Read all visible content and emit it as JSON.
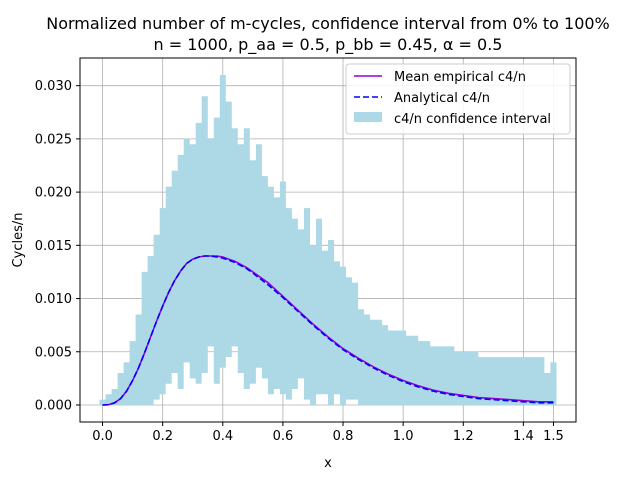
{
  "chart_data": {
    "type": "line",
    "title": "Normalized number of m-cycles, confidence interval from 0% to 100%",
    "subtitle": "n = 1000, p_aa = 0.5, p_bb = 0.45, α = 0.5",
    "xlabel": "x",
    "ylabel": "Cycles/n",
    "xlim": [
      -0.075,
      1.575
    ],
    "ylim": [
      -0.0016,
      0.0326
    ],
    "x_ticks": [
      0.0,
      0.2,
      0.4,
      0.6,
      0.8,
      1.0,
      1.2,
      1.4,
      1.5
    ],
    "x_tick_labels": [
      "0.0",
      "0.2",
      "0.4",
      "0.6",
      "0.8",
      "1.0",
      "1.2",
      "1.4",
      "1.5"
    ],
    "y_ticks": [
      0.0,
      0.005,
      0.01,
      0.015,
      0.02,
      0.025,
      0.03
    ],
    "y_tick_labels": [
      "0.000",
      "0.005",
      "0.010",
      "0.015",
      "0.020",
      "0.025",
      "0.030"
    ],
    "grid": true,
    "legend_position": "top-right",
    "colors": {
      "empirical": "#9400d3",
      "analytical": "#0000ff",
      "band": "#add8e6",
      "grid": "#b0b0b0"
    },
    "series": [
      {
        "name": "Mean empirical c4/n",
        "style": "solid",
        "x": [
          0.0,
          0.02,
          0.04,
          0.06,
          0.08,
          0.1,
          0.12,
          0.14,
          0.16,
          0.18,
          0.2,
          0.22,
          0.24,
          0.26,
          0.28,
          0.3,
          0.32,
          0.34,
          0.36,
          0.38,
          0.4,
          0.42,
          0.44,
          0.46,
          0.48,
          0.5,
          0.55,
          0.6,
          0.65,
          0.7,
          0.75,
          0.8,
          0.85,
          0.9,
          0.95,
          1.0,
          1.05,
          1.1,
          1.15,
          1.2,
          1.25,
          1.3,
          1.35,
          1.4,
          1.45,
          1.5
        ],
        "y": [
          0.0,
          3e-05,
          0.0002,
          0.0006,
          0.0013,
          0.0023,
          0.0035,
          0.0049,
          0.0064,
          0.0079,
          0.0093,
          0.0106,
          0.0117,
          0.0126,
          0.0133,
          0.0137,
          0.0139,
          0.014,
          0.014,
          0.014,
          0.0139,
          0.0137,
          0.0135,
          0.0132,
          0.0129,
          0.0125,
          0.0115,
          0.0102,
          0.0089,
          0.0076,
          0.0064,
          0.0053,
          0.0044,
          0.0036,
          0.0029,
          0.0023,
          0.0018,
          0.0014,
          0.0011,
          0.0009,
          0.0007,
          0.0006,
          0.0005,
          0.0004,
          0.0003,
          0.0003
        ]
      },
      {
        "name": "Analytical c4/n",
        "style": "dashed",
        "x": [
          0.0,
          0.02,
          0.04,
          0.06,
          0.08,
          0.1,
          0.12,
          0.14,
          0.16,
          0.18,
          0.2,
          0.22,
          0.24,
          0.26,
          0.28,
          0.3,
          0.32,
          0.34,
          0.36,
          0.38,
          0.4,
          0.42,
          0.44,
          0.46,
          0.48,
          0.5,
          0.55,
          0.6,
          0.65,
          0.7,
          0.75,
          0.8,
          0.85,
          0.9,
          0.95,
          1.0,
          1.05,
          1.1,
          1.15,
          1.2,
          1.25,
          1.3,
          1.35,
          1.4,
          1.45,
          1.5
        ],
        "y": [
          0.0,
          3e-05,
          0.0002,
          0.0006,
          0.0013,
          0.0023,
          0.0035,
          0.0049,
          0.0064,
          0.0079,
          0.0093,
          0.0106,
          0.0117,
          0.0126,
          0.0133,
          0.0137,
          0.0139,
          0.014,
          0.014,
          0.0139,
          0.0138,
          0.0136,
          0.0134,
          0.0131,
          0.0128,
          0.0124,
          0.0113,
          0.0101,
          0.0088,
          0.0075,
          0.0063,
          0.0052,
          0.0043,
          0.0035,
          0.0028,
          0.0022,
          0.0017,
          0.0013,
          0.001,
          0.0008,
          0.0006,
          0.0005,
          0.0004,
          0.0003,
          0.0002,
          0.0002
        ]
      }
    ],
    "band": {
      "name": "c4/n confidence interval",
      "x": [
        0.0,
        0.02,
        0.04,
        0.06,
        0.08,
        0.1,
        0.12,
        0.14,
        0.16,
        0.18,
        0.2,
        0.22,
        0.24,
        0.26,
        0.28,
        0.3,
        0.32,
        0.34,
        0.36,
        0.38,
        0.4,
        0.42,
        0.44,
        0.46,
        0.48,
        0.5,
        0.52,
        0.54,
        0.56,
        0.58,
        0.6,
        0.62,
        0.64,
        0.66,
        0.68,
        0.7,
        0.72,
        0.74,
        0.76,
        0.78,
        0.8,
        0.82,
        0.84,
        0.86,
        0.88,
        0.9,
        0.92,
        0.94,
        0.96,
        0.98,
        1.0,
        1.02,
        1.04,
        1.06,
        1.08,
        1.1,
        1.12,
        1.14,
        1.16,
        1.18,
        1.2,
        1.22,
        1.24,
        1.26,
        1.28,
        1.3,
        1.32,
        1.34,
        1.36,
        1.38,
        1.4,
        1.42,
        1.44,
        1.46,
        1.48,
        1.5
      ],
      "lower": [
        0.0,
        0.0,
        0.0,
        0.0,
        0.0,
        0.0,
        0.0,
        0.0,
        0.0,
        0.0005,
        0.001,
        0.002,
        0.003,
        0.0015,
        0.004,
        0.0025,
        0.002,
        0.003,
        0.0055,
        0.002,
        0.0035,
        0.0045,
        0.0055,
        0.003,
        0.0015,
        0.002,
        0.0035,
        0.0025,
        0.001,
        0.0015,
        0.001,
        0.0005,
        0.0015,
        0.0025,
        0.0005,
        0.0,
        0.001,
        0.001,
        0.0,
        0.001,
        0.0,
        0.0005,
        0.0005,
        0.0,
        0.0,
        0.0,
        0.0,
        0.0,
        0.0,
        0.0,
        0.0,
        0.0,
        0.0,
        0.0,
        0.0,
        0.0,
        0.0,
        0.0,
        0.0,
        0.0,
        0.0,
        0.0,
        0.0,
        0.0,
        0.0,
        0.0,
        0.0,
        0.0,
        0.0,
        0.0,
        0.0,
        0.0,
        0.0,
        0.0,
        0.0,
        0.0
      ],
      "upper": [
        0.0005,
        0.001,
        0.0015,
        0.003,
        0.004,
        0.006,
        0.0085,
        0.0125,
        0.014,
        0.016,
        0.0185,
        0.0205,
        0.022,
        0.0235,
        0.025,
        0.0245,
        0.0265,
        0.029,
        0.025,
        0.027,
        0.031,
        0.0285,
        0.026,
        0.0245,
        0.026,
        0.023,
        0.0245,
        0.0215,
        0.0205,
        0.0195,
        0.021,
        0.0185,
        0.0175,
        0.0165,
        0.0185,
        0.015,
        0.0175,
        0.0145,
        0.0155,
        0.0135,
        0.013,
        0.012,
        0.0115,
        0.009,
        0.0085,
        0.008,
        0.008,
        0.0075,
        0.007,
        0.007,
        0.007,
        0.0065,
        0.0065,
        0.006,
        0.006,
        0.0055,
        0.0055,
        0.0055,
        0.0055,
        0.005,
        0.005,
        0.005,
        0.005,
        0.0045,
        0.0045,
        0.0045,
        0.0045,
        0.0045,
        0.0045,
        0.0045,
        0.0045,
        0.0045,
        0.0045,
        0.0045,
        0.003,
        0.004
      ]
    }
  }
}
